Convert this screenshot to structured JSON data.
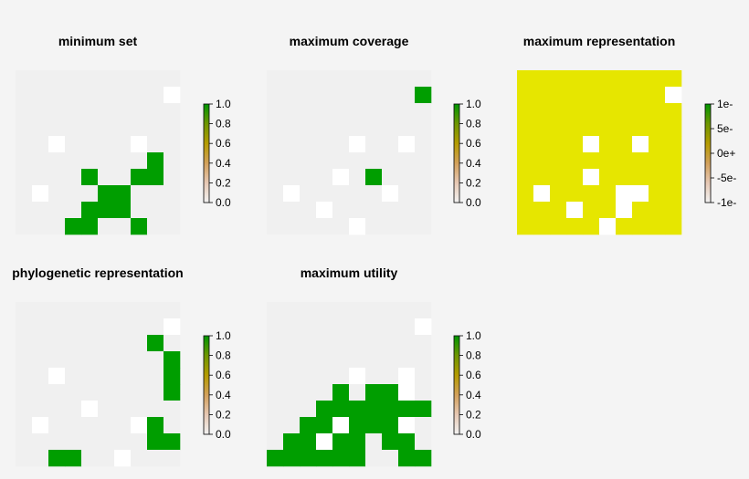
{
  "chart_data": [
    {
      "type": "heatmap",
      "title": "minimum set",
      "zlim": [
        0,
        1
      ],
      "legend_ticks": [
        "0.0",
        "0.2",
        "0.4",
        "0.6",
        "0.8",
        "1.0"
      ],
      "grid": [
        "..........",
        ".........w",
        "..........",
        "..........",
        "..w....w..",
        "........G.",
        "....G..GG.",
        ".w...GG...",
        "....GGG...",
        "...GG..G.."
      ]
    },
    {
      "type": "heatmap",
      "title": "maximum coverage",
      "zlim": [
        0,
        1
      ],
      "legend_ticks": [
        "0.0",
        "0.2",
        "0.4",
        "0.6",
        "0.8",
        "1.0"
      ],
      "grid": [
        "..........",
        ".........G",
        "..........",
        "..........",
        ".....w..w.",
        "..........",
        "....w.G...",
        ".w.....w..",
        "...w......",
        ".....w...."
      ]
    },
    {
      "type": "heatmap",
      "title": "maximum representation",
      "zlim": [
        -1,
        1
      ],
      "legend_ticks": [
        "-1e-",
        "-5e-",
        "0e+",
        "5e-",
        "1e-"
      ],
      "grid": [
        "YYYYYYYYYY",
        "YYYYYYYYYw",
        "YYYYYYYYYY",
        "YYYYYYYYYY",
        "YYYYwYYwYY",
        "YYYYYYYYYY",
        "YYYYwYYYYY",
        "YwYYYYwwYY",
        "YYYwYYwYYY",
        "YYYYYwYYYY"
      ]
    },
    {
      "type": "heatmap",
      "title": "phylogenetic representation",
      "zlim": [
        0,
        1
      ],
      "legend_ticks": [
        "0.0",
        "0.2",
        "0.4",
        "0.6",
        "0.8",
        "1.0"
      ],
      "grid": [
        "..........",
        ".........w",
        "........G.",
        ".........G",
        "..w......G",
        ".........G",
        "....w.....",
        ".w.....wG.",
        "........GG",
        "..GG..w..."
      ]
    },
    {
      "type": "heatmap",
      "title": "maximum utility",
      "zlim": [
        0,
        1
      ],
      "legend_ticks": [
        "0.0",
        "0.2",
        "0.4",
        "0.6",
        "0.8",
        "1.0"
      ],
      "grid": [
        "..........",
        ".........w",
        "..........",
        "..........",
        ".....w..w.",
        "....G.GGw.",
        "...GGGGGGG",
        "..GGwGGGw.",
        ".GGwGG.GG.",
        "GGGGGG..GG"
      ]
    }
  ],
  "colors": {
    "background": "#f4f4f4",
    "cell_empty": "#f0f0f0",
    "cell_white": "#ffffff",
    "cell_green": "#009e00",
    "cell_yellow": "#e6e600",
    "legend_stops": [
      "#f2f2f2",
      "#e6c8b4",
      "#d2a05a",
      "#b49b00",
      "#6e9600",
      "#009600"
    ]
  }
}
